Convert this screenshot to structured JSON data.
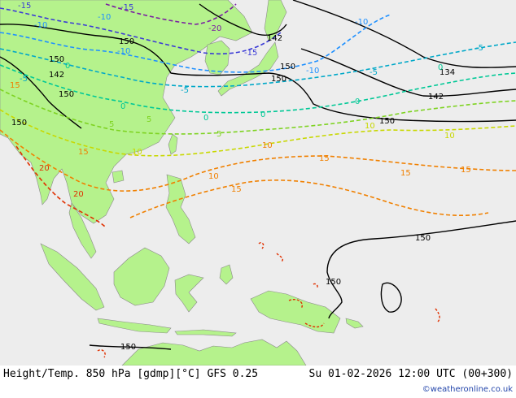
{
  "footer": {
    "left": "Height/Temp. 850 hPa [gdmp][°C] GFS 0.25",
    "right": "Su 01-02-2026 12:00 UTC (00+300)",
    "credit": "©weatheronline.co.uk"
  },
  "map_labels": {
    "height_contours": [
      "150",
      "142",
      "150",
      "142",
      "134",
      "150",
      "142",
      "150",
      "150",
      "150",
      "150",
      "150",
      "150",
      "150"
    ],
    "temperature_labels": [
      "-15",
      "-15",
      "-10",
      "-10",
      "-20",
      "-15",
      "-10",
      "-10",
      "-5",
      "-10",
      "-5",
      "-5",
      "0",
      "-5",
      "0",
      "0",
      "5",
      "5",
      "0",
      "0",
      "0",
      "10",
      "10",
      "15",
      "15",
      "20",
      "20",
      "15",
      "5",
      "10",
      "10",
      "15",
      "15",
      "10",
      "15"
    ]
  },
  "colors": {
    "ocean": "#ededed",
    "land": "#b5f28c",
    "height_contour": "#000000",
    "t_minus20": "#7a1fa2",
    "t_minus15": "#3b3bd6",
    "t_minus10": "#1e90ff",
    "t_minus5": "#00a8c8",
    "t_zero": "#00c896",
    "t_plus5": "#7ed321",
    "t_plus10": "#c8d800",
    "t_plus15": "#f08000",
    "t_plus20": "#e03000",
    "credit": "#2244aa"
  }
}
